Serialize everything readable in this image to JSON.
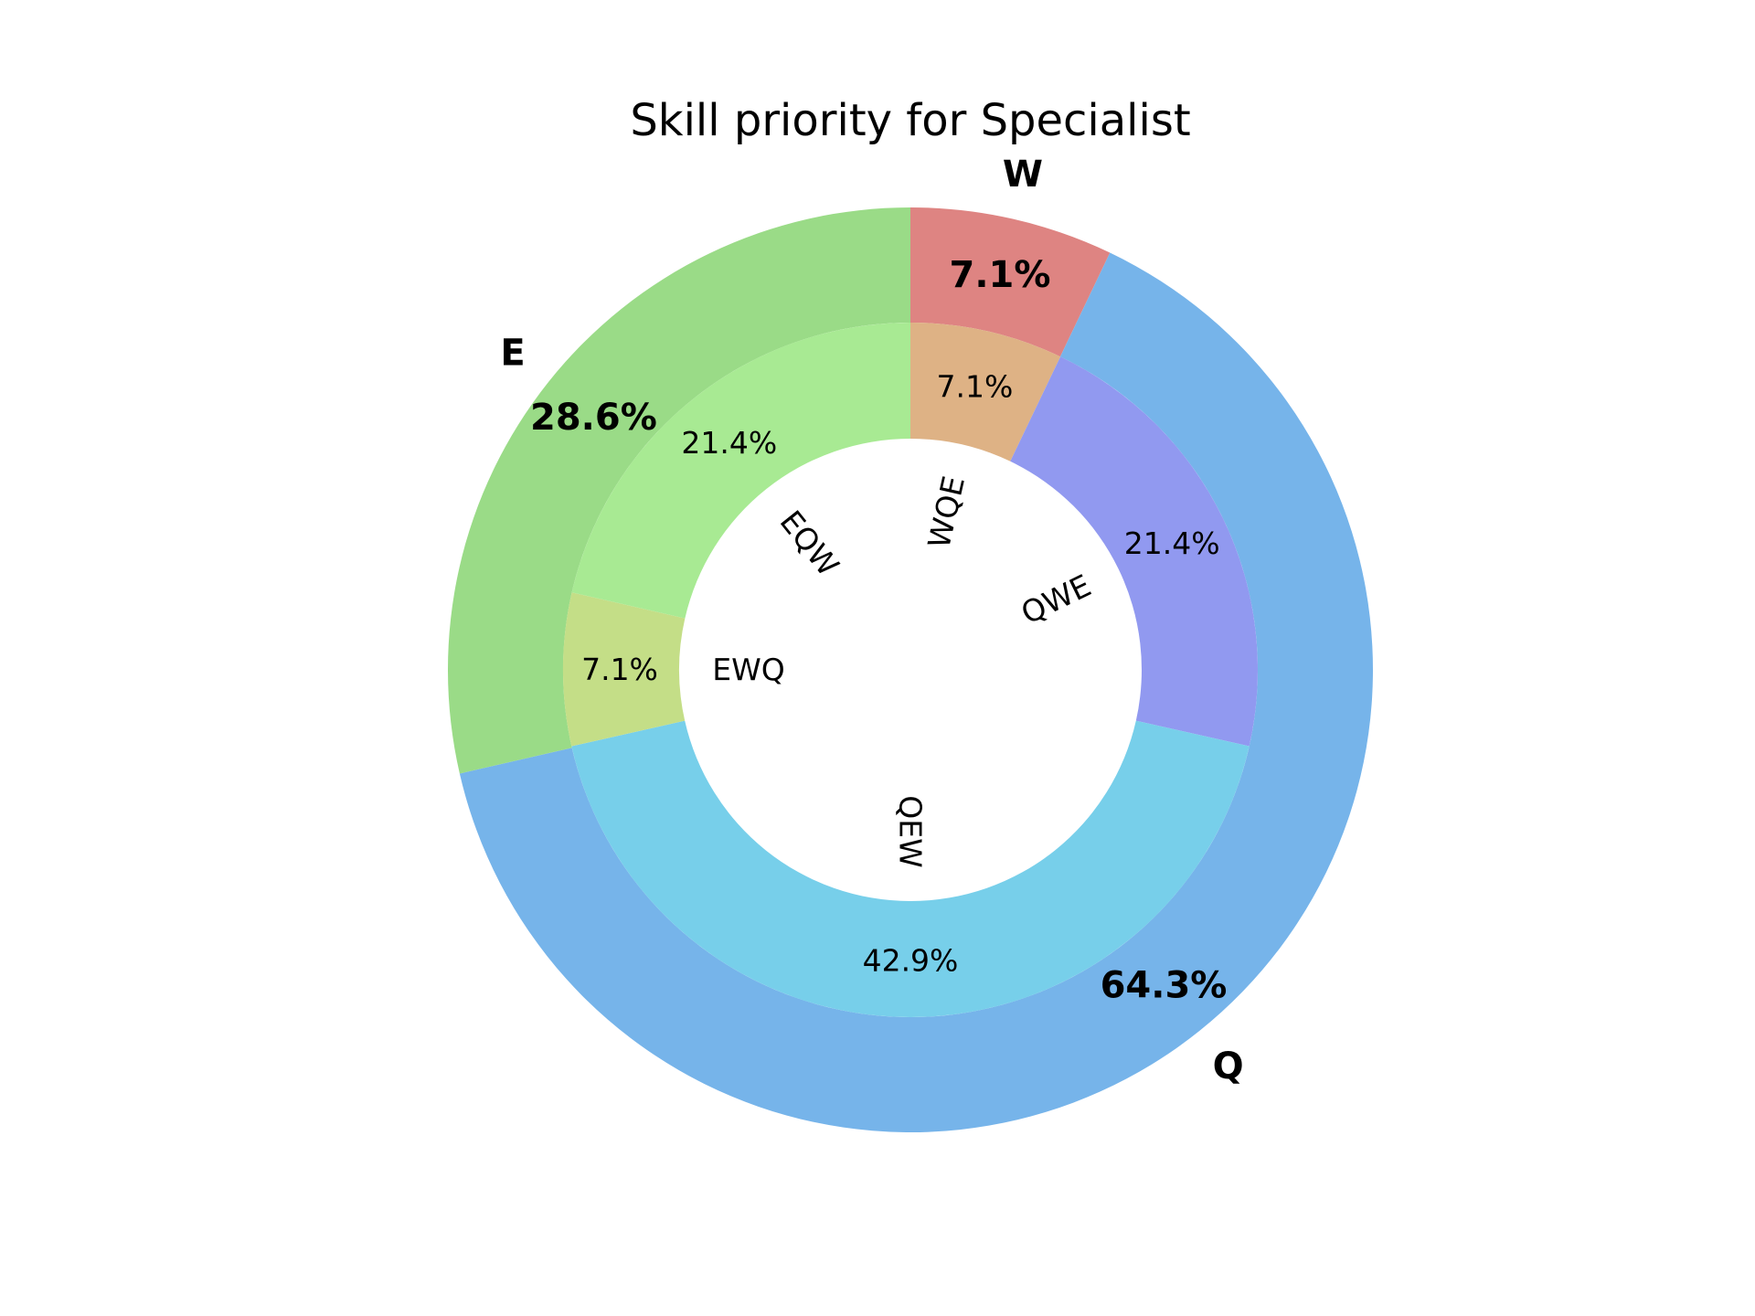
{
  "chart_data": {
    "type": "pie",
    "variant": "nested-donut",
    "title": "Skill priority for Specialist",
    "outer": {
      "labels": [
        "W",
        "Q",
        "E"
      ],
      "values": [
        7.1,
        64.3,
        28.6
      ],
      "value_labels": [
        "7.1%",
        "64.3%",
        "28.6%"
      ],
      "colors": [
        "#de8482",
        "#76b4ea",
        "#9adb87"
      ]
    },
    "inner": {
      "labels": [
        "WQE",
        "QWE",
        "QEW",
        "EWQ",
        "EQW"
      ],
      "values": [
        7.1,
        21.4,
        42.9,
        7.1,
        21.4
      ],
      "value_labels": [
        "7.1%",
        "21.4%",
        "42.9%",
        "7.1%",
        "21.4%"
      ],
      "colors": [
        "#deb285",
        "#9199f0",
        "#77cfea",
        "#c4de87",
        "#a8ea93"
      ]
    },
    "start": "top",
    "direction": "clockwise"
  }
}
